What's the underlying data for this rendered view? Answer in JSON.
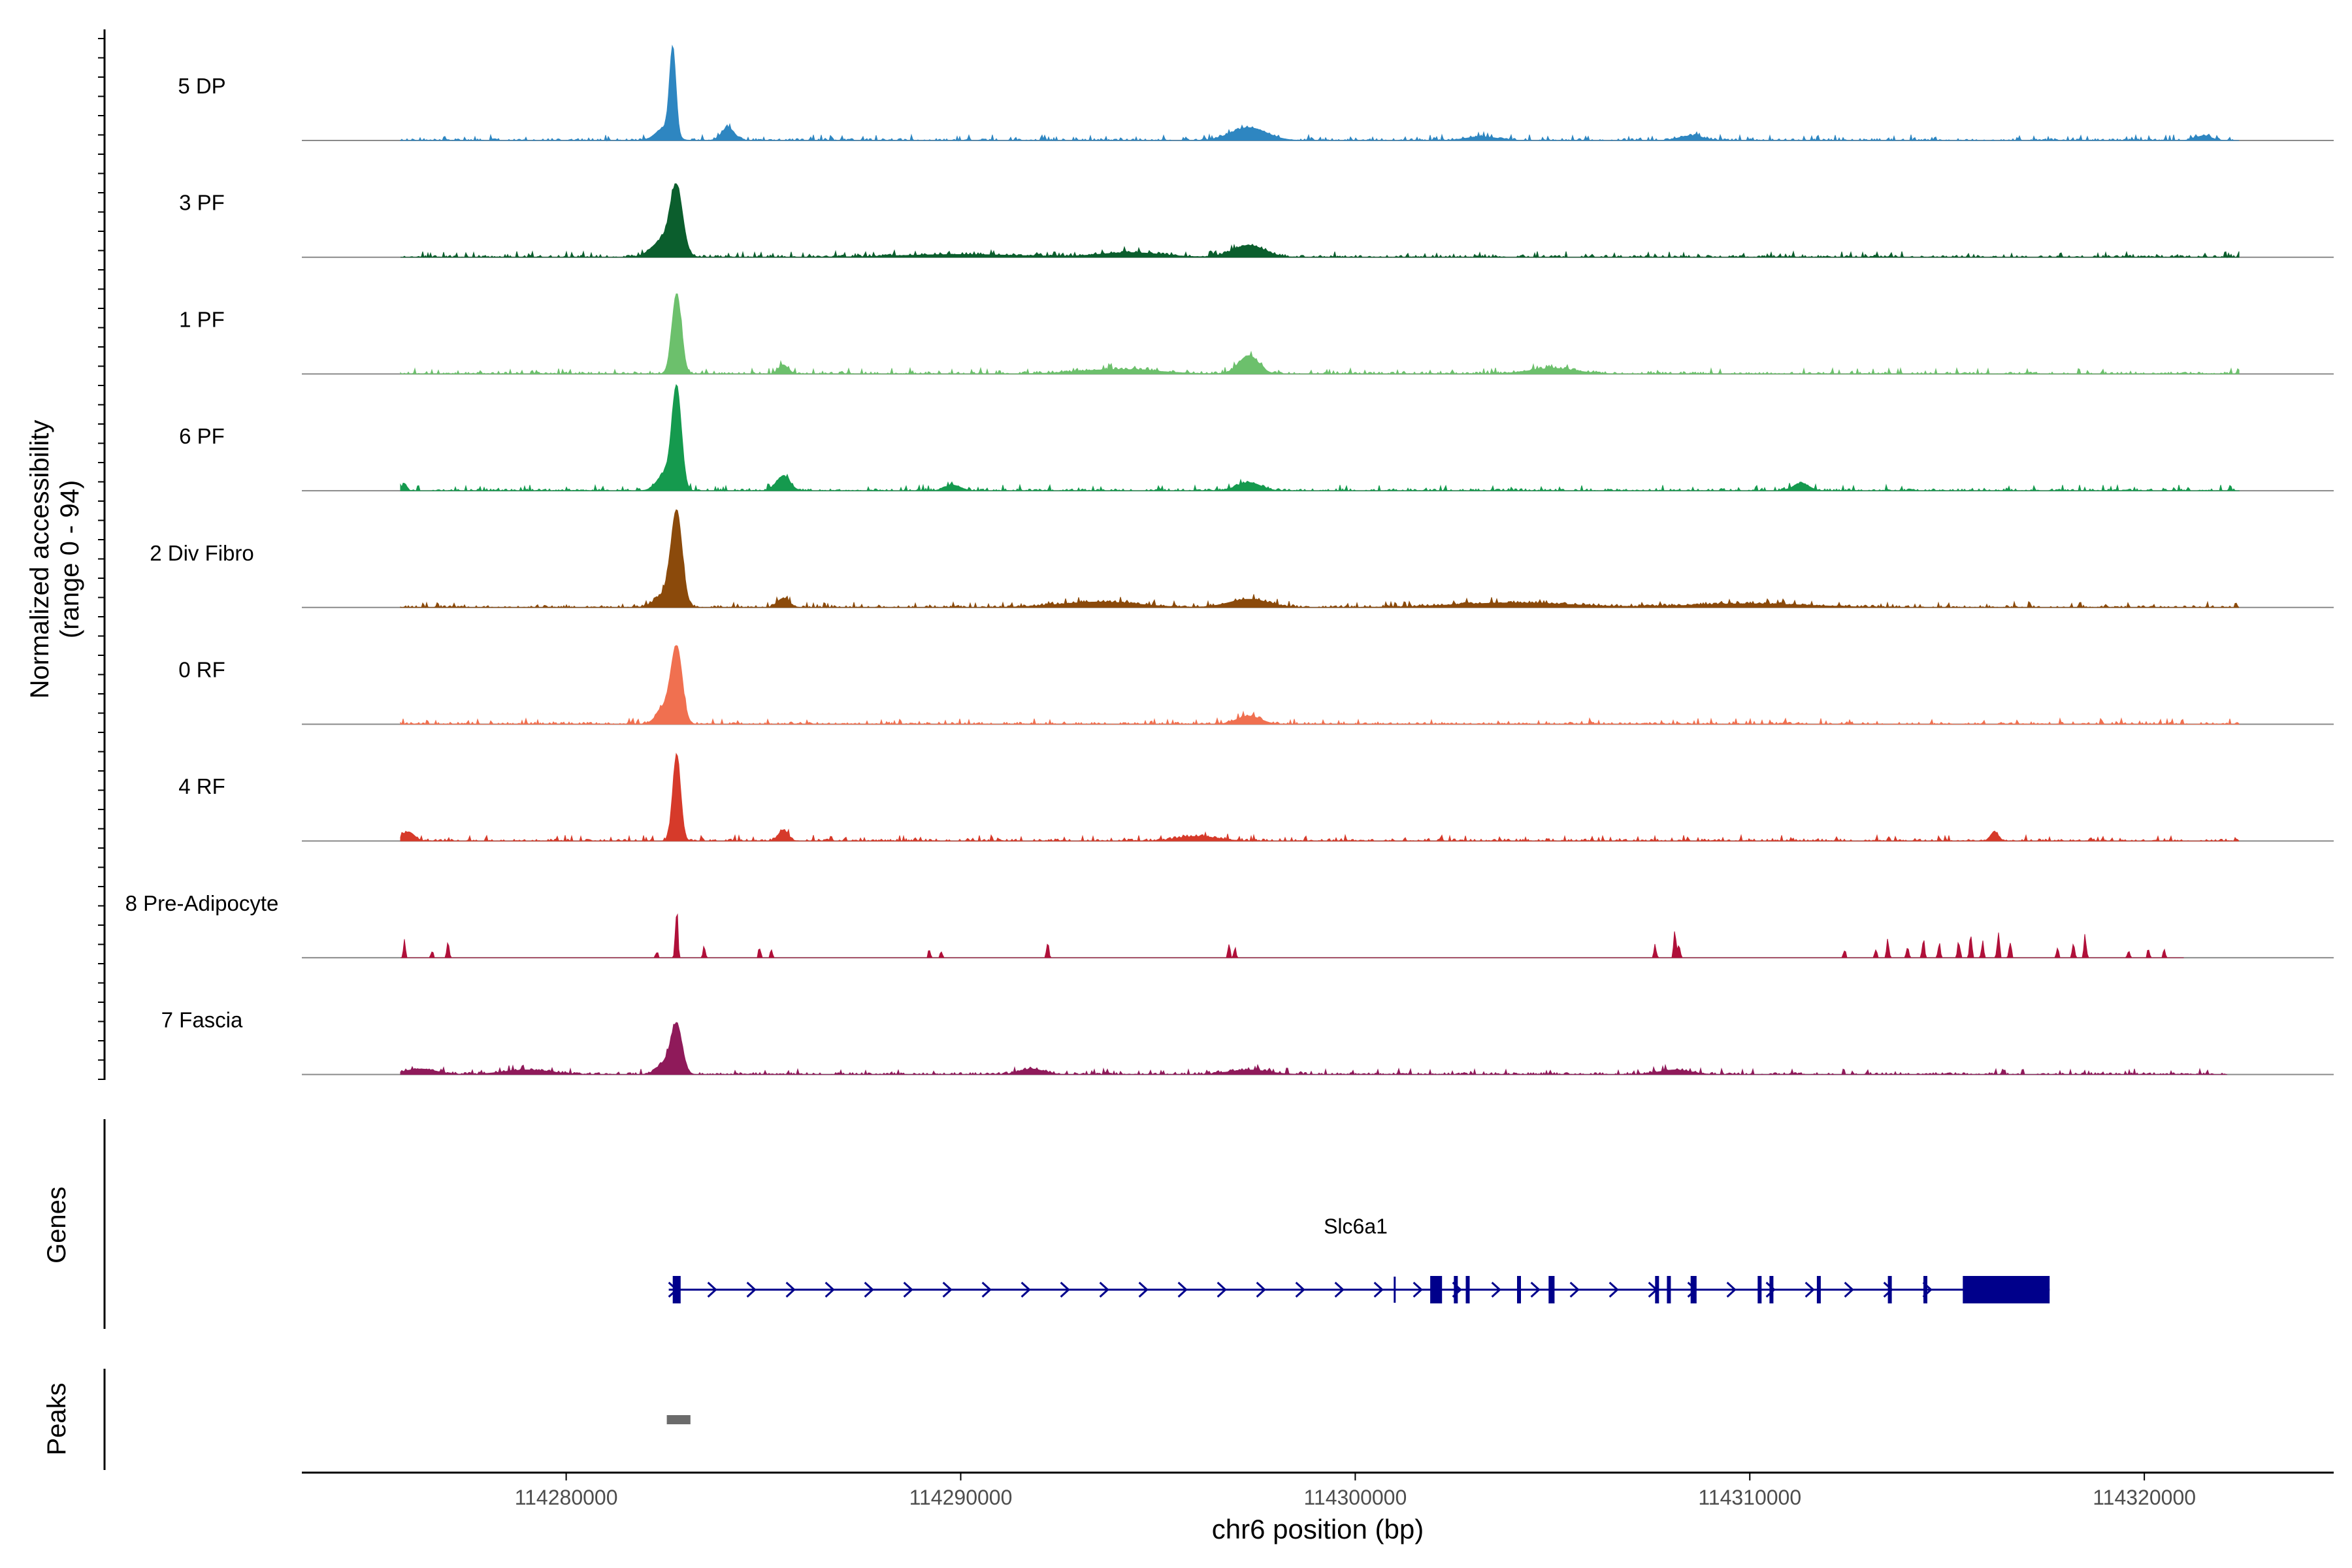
{
  "chart_data": {
    "type": "area",
    "y_axis_label_line1": "Normalized accessibility",
    "y_axis_label_line2": "(range 0 - 94)",
    "y_range": [
      0,
      94
    ],
    "x_axis": {
      "label": "chr6 position (bp)",
      "range": [
        114273300,
        114324800
      ],
      "ticks": [
        {
          "value": 114280000,
          "label": "114280000"
        },
        {
          "value": 114290000,
          "label": "114290000"
        },
        {
          "value": 114300000,
          "label": "114300000"
        },
        {
          "value": 114310000,
          "label": "114310000"
        },
        {
          "value": 114320000,
          "label": "114320000"
        }
      ]
    },
    "tracks": [
      {
        "name": "5 DP",
        "color": "#2e86c1",
        "signal_start": 114275800,
        "signal_end": 114322400,
        "sparse": false,
        "peaks": [
          [
            114282700,
            94,
            80
          ],
          [
            114282500,
            14,
            220
          ],
          [
            114284100,
            14,
            160
          ],
          [
            114297300,
            14,
            450
          ],
          [
            114303200,
            4,
            400
          ],
          [
            114308500,
            5,
            300
          ],
          [
            114321500,
            5,
            200
          ]
        ]
      },
      {
        "name": "3 PF",
        "color": "#0b5e2d",
        "signal_start": 114275800,
        "signal_end": 114322400,
        "sparse": false,
        "peaks": [
          [
            114282800,
            68,
            150
          ],
          [
            114282500,
            20,
            300
          ],
          [
            114297300,
            13,
            400
          ],
          [
            114294300,
            5,
            800
          ],
          [
            114290000,
            3,
            1500
          ]
        ]
      },
      {
        "name": "1 PF",
        "color": "#6cc06c",
        "signal_start": 114275800,
        "signal_end": 114322400,
        "sparse": false,
        "peaks": [
          [
            114282800,
            88,
            120
          ],
          [
            114285500,
            10,
            120
          ],
          [
            114297300,
            20,
            250
          ],
          [
            114305000,
            6,
            600
          ],
          [
            114294000,
            5,
            1000
          ]
        ]
      },
      {
        "name": "6 PF",
        "color": "#159a4e",
        "signal_start": 114275800,
        "signal_end": 114322400,
        "sparse": false,
        "peaks": [
          [
            114282800,
            110,
            120
          ],
          [
            114282500,
            18,
            200
          ],
          [
            114285500,
            16,
            170
          ],
          [
            114275900,
            8,
            60
          ],
          [
            114297300,
            9,
            300
          ],
          [
            114311300,
            8,
            200
          ],
          [
            114289800,
            6,
            200
          ]
        ]
      },
      {
        "name": "2 Div Fibro",
        "color": "#8b4a0b",
        "signal_start": 114275800,
        "signal_end": 114322400,
        "sparse": false,
        "peaks": [
          [
            114282800,
            100,
            140
          ],
          [
            114282500,
            14,
            250
          ],
          [
            114285500,
            10,
            150
          ],
          [
            114297300,
            9,
            500
          ],
          [
            114293500,
            6,
            1000
          ],
          [
            114304000,
            5,
            1500
          ],
          [
            114310000,
            4,
            1500
          ]
        ]
      },
      {
        "name": "0 RF",
        "color": "#f07050",
        "signal_start": 114275800,
        "signal_end": 114322400,
        "sparse": false,
        "peaks": [
          [
            114282800,
            80,
            140
          ],
          [
            114282500,
            18,
            200
          ],
          [
            114297300,
            9,
            300
          ]
        ]
      },
      {
        "name": "4 RF",
        "color": "#d63a2a",
        "signal_start": 114275800,
        "signal_end": 114322400,
        "sparse": false,
        "peaks": [
          [
            114282800,
            94,
            100
          ],
          [
            114285500,
            12,
            120
          ],
          [
            114276000,
            10,
            150
          ],
          [
            114296000,
            5,
            500
          ],
          [
            114316200,
            10,
            100
          ]
        ]
      },
      {
        "name": "8 Pre-Adipocyte",
        "color": "#b0103a",
        "signal_start": 114275800,
        "signal_end": 114321000,
        "sparse": true,
        "peaks": [
          [
            114282800,
            75,
            30
          ],
          [
            114275900,
            22,
            30
          ],
          [
            114277000,
            20,
            30
          ],
          [
            114276600,
            10,
            30
          ],
          [
            114282300,
            8,
            30
          ],
          [
            114283500,
            15,
            30
          ],
          [
            114284900,
            14,
            30
          ],
          [
            114285200,
            12,
            30
          ],
          [
            114289200,
            10,
            30
          ],
          [
            114289500,
            10,
            30
          ],
          [
            114292200,
            20,
            30
          ],
          [
            114296800,
            18,
            30
          ],
          [
            114296950,
            12,
            30
          ],
          [
            114307600,
            18,
            30
          ],
          [
            114308100,
            35,
            30
          ],
          [
            114308200,
            22,
            30
          ],
          [
            114312400,
            12,
            30
          ],
          [
            114313200,
            12,
            30
          ],
          [
            114313500,
            22,
            30
          ],
          [
            114314000,
            15,
            30
          ],
          [
            114314400,
            25,
            30
          ],
          [
            114314800,
            18,
            30
          ],
          [
            114315300,
            22,
            30
          ],
          [
            114315600,
            28,
            30
          ],
          [
            114315900,
            20,
            30
          ],
          [
            114316300,
            30,
            30
          ],
          [
            114316600,
            22,
            30
          ],
          [
            114317800,
            12,
            30
          ],
          [
            114318200,
            18,
            30
          ],
          [
            114318500,
            30,
            30
          ],
          [
            114319600,
            10,
            30
          ],
          [
            114320100,
            10,
            30
          ],
          [
            114320500,
            10,
            30
          ]
        ]
      },
      {
        "name": "7 Fascia",
        "color": "#8f1a5a",
        "signal_start": 114275800,
        "signal_end": 114322100,
        "sparse": false,
        "peaks": [
          [
            114282800,
            52,
            140
          ],
          [
            114282500,
            12,
            200
          ],
          [
            114276300,
            6,
            400
          ],
          [
            114279000,
            5,
            600
          ],
          [
            114291800,
            6,
            300
          ],
          [
            114297300,
            5,
            500
          ],
          [
            114308100,
            5,
            400
          ]
        ]
      }
    ],
    "genes_label": "Genes",
    "gene": {
      "name": "Slc6a1",
      "color": "#00008b",
      "start": 114282600,
      "end": 114317600,
      "exons": [
        [
          114282700,
          114282900
        ],
        [
          114301900,
          114302200
        ],
        [
          114302500,
          114302600
        ],
        [
          114302800,
          114302900
        ],
        [
          114304100,
          114304150
        ],
        [
          114304900,
          114305050
        ],
        [
          114307600,
          114307700
        ],
        [
          114307900,
          114308000
        ],
        [
          114308500,
          114308650
        ],
        [
          114310200,
          114310300
        ],
        [
          114310500,
          114310600
        ],
        [
          114311700,
          114311800
        ],
        [
          114313500,
          114313550
        ],
        [
          114314400,
          114314500
        ],
        [
          114315400,
          114317600
        ]
      ],
      "marks": [
        114301000
      ]
    },
    "peaks_label": "Peaks",
    "peak_regions": [
      [
        114282550,
        114283150
      ]
    ],
    "peak_color": "#6b6b6b"
  }
}
